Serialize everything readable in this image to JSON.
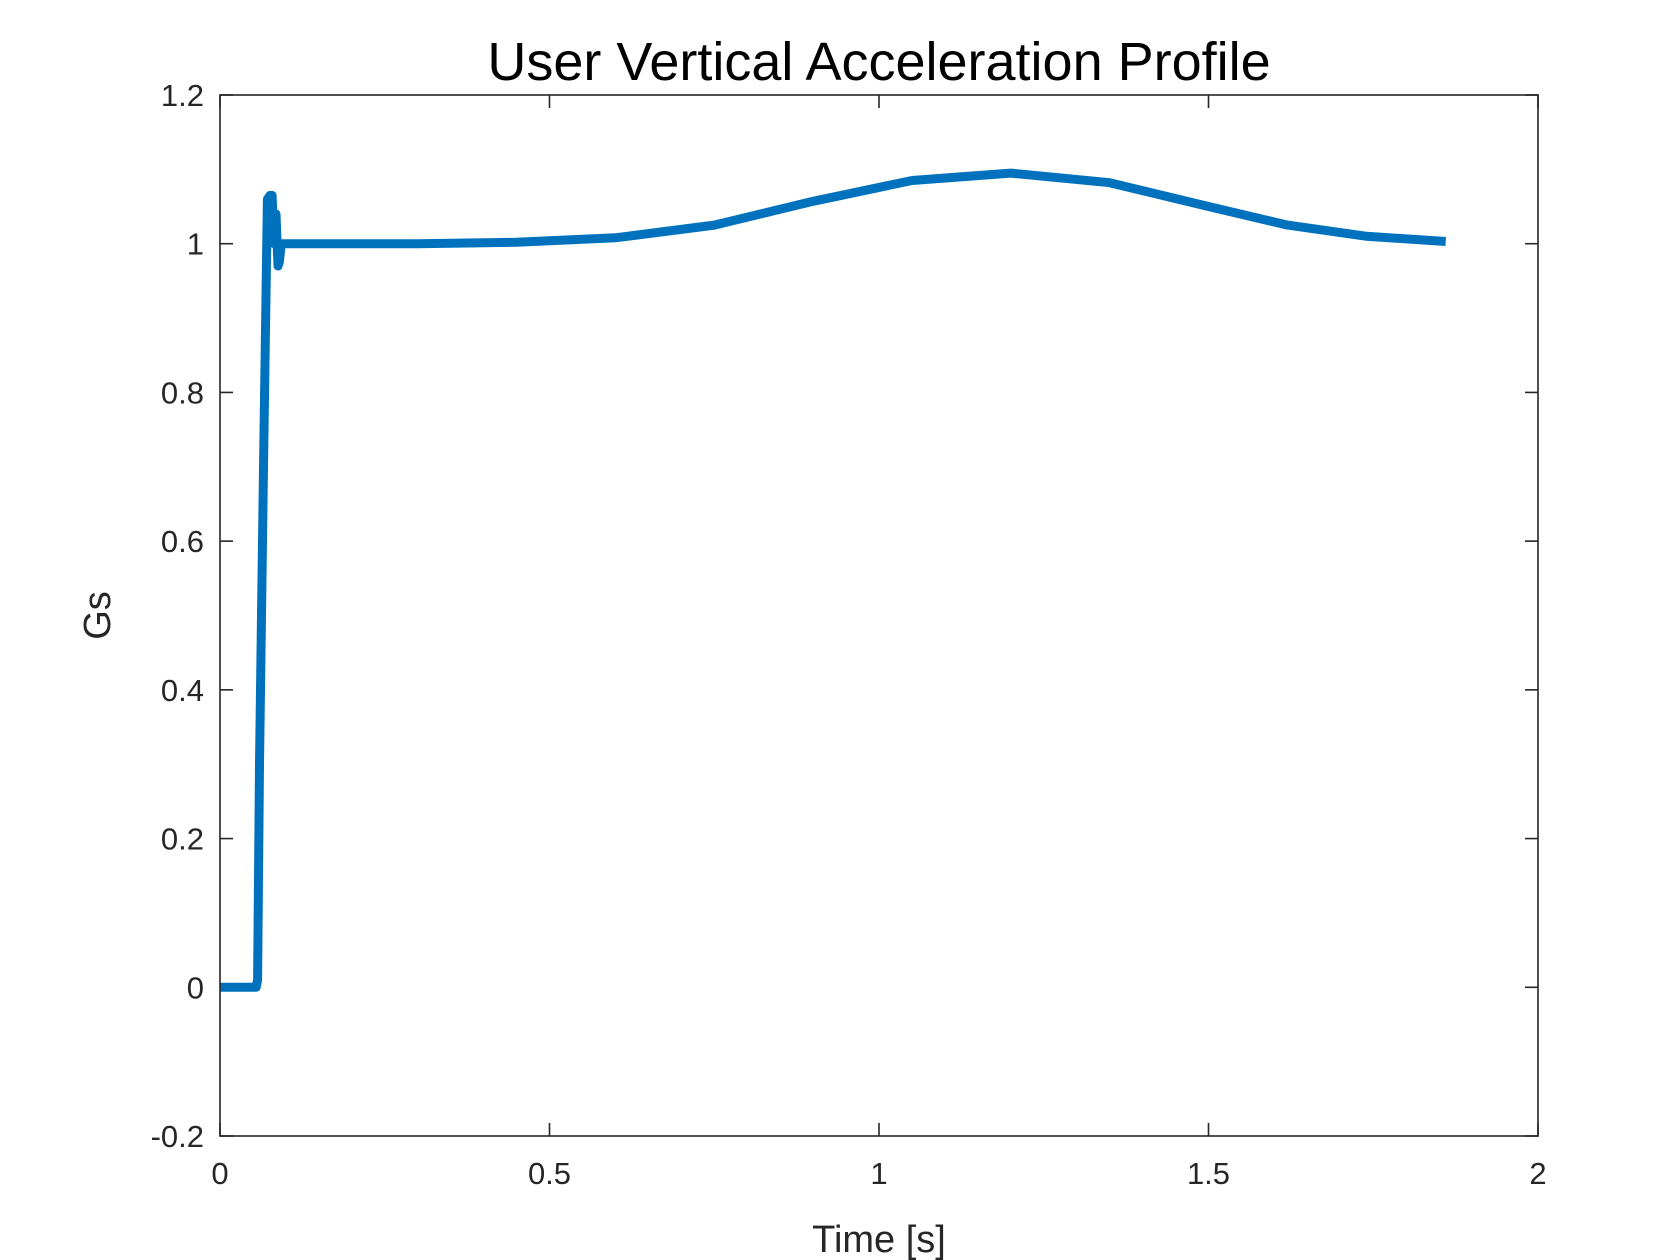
{
  "chart_data": {
    "type": "line",
    "title": "User Vertical Acceleration Profile",
    "xlabel": "Time [s]",
    "ylabel": "Gs",
    "xlim": [
      0,
      2
    ],
    "ylim": [
      -0.2,
      1.2
    ],
    "xticks": [
      0,
      0.5,
      1,
      1.5,
      2
    ],
    "xtick_labels": [
      "0",
      "0.5",
      "1",
      "1.5",
      "2"
    ],
    "yticks": [
      -0.2,
      0,
      0.2,
      0.4,
      0.6,
      0.8,
      1,
      1.2
    ],
    "ytick_labels": [
      "-0.2",
      "0",
      "0.2",
      "0.4",
      "0.6",
      "0.8",
      "1",
      "1.2"
    ],
    "grid": false,
    "series": [
      {
        "color": "#0072BD",
        "x": [
          0,
          0.055,
          0.057,
          0.06,
          0.066,
          0.072,
          0.076,
          0.079,
          0.082,
          0.085,
          0.088,
          0.09,
          0.093,
          0.1,
          0.15,
          0.3,
          0.45,
          0.6,
          0.75,
          0.9,
          1.05,
          1.2,
          1.35,
          1.5,
          1.62,
          1.74,
          1.86
        ],
        "y": [
          0,
          0,
          0.01,
          0.3,
          0.7,
          1.06,
          1.065,
          1.065,
          1.0,
          1.04,
          0.97,
          0.975,
          1.0,
          1.0,
          1.0,
          1.0,
          1.002,
          1.008,
          1.025,
          1.057,
          1.085,
          1.095,
          1.082,
          1.05,
          1.025,
          1.01,
          1.003
        ]
      }
    ]
  }
}
